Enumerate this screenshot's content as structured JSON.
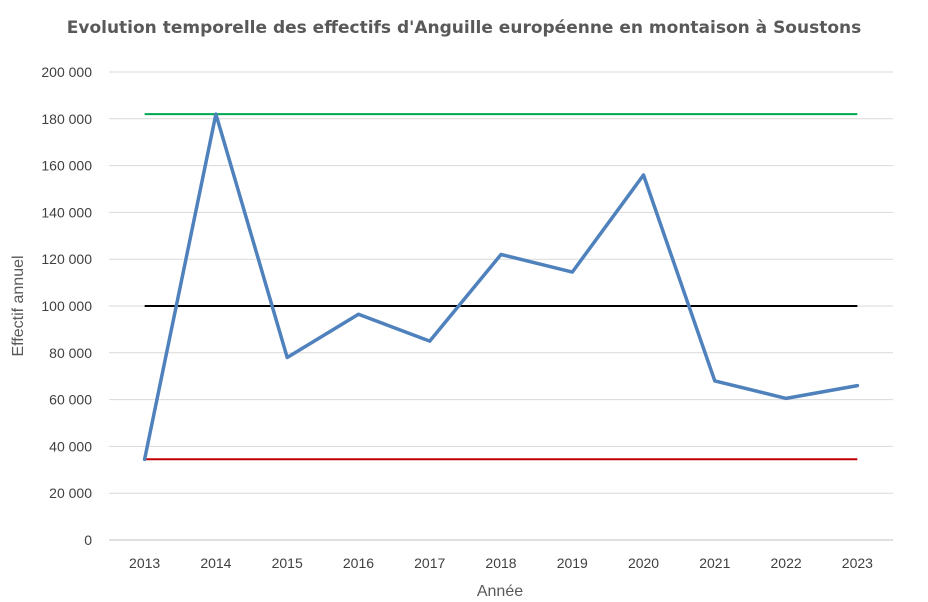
{
  "chart_data": {
    "type": "line",
    "title": "Evolution temporelle des effectifs d'Anguille européenne en montaison à Soustons",
    "xlabel": "Année",
    "ylabel": "Effectif annuel",
    "ylim": [
      0,
      200000
    ],
    "yticks": [
      0,
      20000,
      40000,
      60000,
      80000,
      100000,
      120000,
      140000,
      160000,
      180000,
      200000
    ],
    "ytick_labels": [
      "0",
      "20 000",
      "40 000",
      "60 000",
      "80 000",
      "100 000",
      "120 000",
      "140 000",
      "160 000",
      "180 000",
      "200 000"
    ],
    "categories": [
      "2013",
      "2014",
      "2015",
      "2016",
      "2017",
      "2018",
      "2019",
      "2020",
      "2021",
      "2022",
      "2023"
    ],
    "grid": true,
    "legend": "none",
    "series": [
      {
        "values": [
          34500,
          182000,
          78000,
          96500,
          85000,
          122000,
          114500,
          156000,
          68000,
          60500,
          66000
        ],
        "color": "#4f81bd"
      }
    ],
    "reference_lines": [
      {
        "value": 182000,
        "color": "#00a651"
      },
      {
        "value": 100000,
        "color": "#000000"
      },
      {
        "value": 34500,
        "color": "#c00000"
      }
    ]
  }
}
